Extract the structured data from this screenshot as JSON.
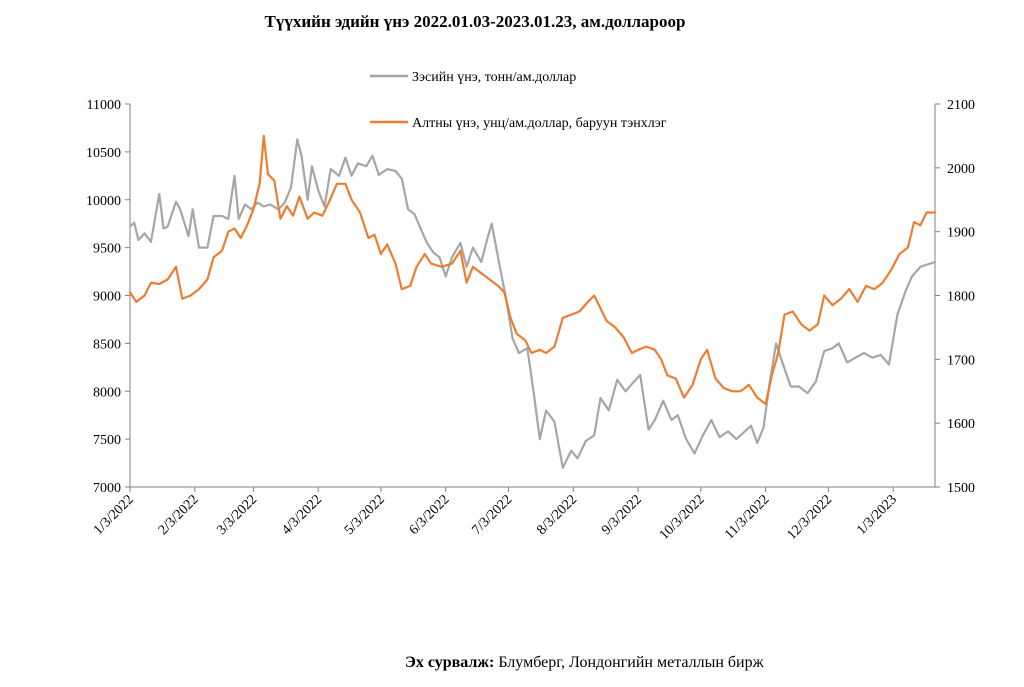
{
  "title": "Түүхийн эдийн үнэ 2022.01.03-2023.01.23, ам.доллароор",
  "source": {
    "label": "Эх сурвалж:",
    "text": " Блумберг, Лондонгийн металлын бирж"
  },
  "colors": {
    "copper": "#a6a6a6",
    "gold": "#ed7d31",
    "axis": "#808080"
  },
  "chart_data": {
    "type": "line",
    "title": "Түүхийн эдийн үнэ 2022.01.03-2023.01.23, ам.доллароор",
    "x_axis": {
      "type": "date",
      "range": [
        "2022-01-03",
        "2023-01-23"
      ],
      "tick_labels": [
        "1/3/2022",
        "2/3/2022",
        "3/3/2022",
        "4/3/2022",
        "5/3/2022",
        "6/3/2022",
        "7/3/2022",
        "8/3/2022",
        "9/3/2022",
        "10/3/2022",
        "11/3/2022",
        "12/3/2022",
        "1/3/2023"
      ],
      "tick_dates": [
        "2022-01-03",
        "2022-02-03",
        "2022-03-03",
        "2022-04-03",
        "2022-05-03",
        "2022-06-03",
        "2022-07-03",
        "2022-08-03",
        "2022-09-03",
        "2022-10-03",
        "2022-11-03",
        "2022-12-03",
        "2023-01-03"
      ]
    },
    "y_left": {
      "range": [
        7000,
        11000
      ],
      "tick_labels": [
        "7000",
        "7500",
        "8000",
        "8500",
        "9000",
        "9500",
        "10000",
        "10500",
        "11000"
      ]
    },
    "y_right": {
      "range": [
        1500,
        2100
      ],
      "tick_labels": [
        "1500",
        "1600",
        "1700",
        "1800",
        "1900",
        "2000",
        "2100"
      ]
    },
    "legend_position": "top-center",
    "series": [
      {
        "name": "Зэсийн үнэ, тонн/ам.доллар",
        "axis": "left",
        "color": "#a6a6a6",
        "points": [
          [
            "2022-01-03",
            9720
          ],
          [
            "2022-01-05",
            9760
          ],
          [
            "2022-01-07",
            9580
          ],
          [
            "2022-01-10",
            9650
          ],
          [
            "2022-01-13",
            9560
          ],
          [
            "2022-01-17",
            10060
          ],
          [
            "2022-01-19",
            9700
          ],
          [
            "2022-01-21",
            9720
          ],
          [
            "2022-01-25",
            9980
          ],
          [
            "2022-01-27",
            9900
          ],
          [
            "2022-01-31",
            9620
          ],
          [
            "2022-02-02",
            9900
          ],
          [
            "2022-02-05",
            9500
          ],
          [
            "2022-02-09",
            9500
          ],
          [
            "2022-02-12",
            9830
          ],
          [
            "2022-02-16",
            9830
          ],
          [
            "2022-02-19",
            9800
          ],
          [
            "2022-02-22",
            10250
          ],
          [
            "2022-02-24",
            9800
          ],
          [
            "2022-02-27",
            9950
          ],
          [
            "2022-03-02",
            9900
          ],
          [
            "2022-03-05",
            9970
          ],
          [
            "2022-03-08",
            9930
          ],
          [
            "2022-03-11",
            9950
          ],
          [
            "2022-03-15",
            9900
          ],
          [
            "2022-03-18",
            9970
          ],
          [
            "2022-03-21",
            10130
          ],
          [
            "2022-03-24",
            10630
          ],
          [
            "2022-03-26",
            10460
          ],
          [
            "2022-03-29",
            10000
          ],
          [
            "2022-03-31",
            10350
          ],
          [
            "2022-04-03",
            10100
          ],
          [
            "2022-04-06",
            9930
          ],
          [
            "2022-04-09",
            10320
          ],
          [
            "2022-04-13",
            10250
          ],
          [
            "2022-04-16",
            10440
          ],
          [
            "2022-04-19",
            10250
          ],
          [
            "2022-04-22",
            10380
          ],
          [
            "2022-04-26",
            10350
          ],
          [
            "2022-04-29",
            10460
          ],
          [
            "2022-05-02",
            10260
          ],
          [
            "2022-05-06",
            10320
          ],
          [
            "2022-05-10",
            10300
          ],
          [
            "2022-05-13",
            10220
          ],
          [
            "2022-05-16",
            9900
          ],
          [
            "2022-05-19",
            9850
          ],
          [
            "2022-05-22",
            9700
          ],
          [
            "2022-05-25",
            9550
          ],
          [
            "2022-05-28",
            9450
          ],
          [
            "2022-05-31",
            9400
          ],
          [
            "2022-06-03",
            9200
          ],
          [
            "2022-06-06",
            9400
          ],
          [
            "2022-06-10",
            9550
          ],
          [
            "2022-06-13",
            9300
          ],
          [
            "2022-06-16",
            9500
          ],
          [
            "2022-06-20",
            9350
          ],
          [
            "2022-06-23",
            9600
          ],
          [
            "2022-06-25",
            9750
          ],
          [
            "2022-06-28",
            9400
          ],
          [
            "2022-07-02",
            8950
          ],
          [
            "2022-07-05",
            8550
          ],
          [
            "2022-07-08",
            8400
          ],
          [
            "2022-07-12",
            8450
          ],
          [
            "2022-07-15",
            8000
          ],
          [
            "2022-07-18",
            7500
          ],
          [
            "2022-07-21",
            7800
          ],
          [
            "2022-07-25",
            7680
          ],
          [
            "2022-07-29",
            7200
          ],
          [
            "2022-08-02",
            7380
          ],
          [
            "2022-08-05",
            7300
          ],
          [
            "2022-08-09",
            7480
          ],
          [
            "2022-08-13",
            7540
          ],
          [
            "2022-08-16",
            7930
          ],
          [
            "2022-08-20",
            7800
          ],
          [
            "2022-08-24",
            8120
          ],
          [
            "2022-08-28",
            8000
          ],
          [
            "2022-09-01",
            8100
          ],
          [
            "2022-09-04",
            8170
          ],
          [
            "2022-09-08",
            7600
          ],
          [
            "2022-09-11",
            7700
          ],
          [
            "2022-09-15",
            7900
          ],
          [
            "2022-09-19",
            7700
          ],
          [
            "2022-09-22",
            7750
          ],
          [
            "2022-09-26",
            7500
          ],
          [
            "2022-09-30",
            7350
          ],
          [
            "2022-10-04",
            7540
          ],
          [
            "2022-10-08",
            7700
          ],
          [
            "2022-10-12",
            7520
          ],
          [
            "2022-10-16",
            7580
          ],
          [
            "2022-10-20",
            7500
          ],
          [
            "2022-10-24",
            7580
          ],
          [
            "2022-10-27",
            7640
          ],
          [
            "2022-10-30",
            7460
          ],
          [
            "2022-11-02",
            7620
          ],
          [
            "2022-11-05",
            8100
          ],
          [
            "2022-11-08",
            8500
          ],
          [
            "2022-11-11",
            8300
          ],
          [
            "2022-11-15",
            8050
          ],
          [
            "2022-11-19",
            8050
          ],
          [
            "2022-11-23",
            7980
          ],
          [
            "2022-11-27",
            8100
          ],
          [
            "2022-12-01",
            8420
          ],
          [
            "2022-12-05",
            8450
          ],
          [
            "2022-12-08",
            8500
          ],
          [
            "2022-12-12",
            8300
          ],
          [
            "2022-12-16",
            8350
          ],
          [
            "2022-12-20",
            8400
          ],
          [
            "2022-12-24",
            8350
          ],
          [
            "2022-12-28",
            8380
          ],
          [
            "2023-01-01",
            8280
          ],
          [
            "2023-01-05",
            8800
          ],
          [
            "2023-01-09",
            9050
          ],
          [
            "2023-01-12",
            9200
          ],
          [
            "2023-01-16",
            9300
          ],
          [
            "2023-01-23",
            9350
          ]
        ]
      },
      {
        "name": "Алтны үнэ, унц/ам.доллар, баруун тэнхлэг",
        "axis": "right",
        "color": "#ed7d31",
        "points": [
          [
            "2022-01-03",
            1805
          ],
          [
            "2022-01-06",
            1790
          ],
          [
            "2022-01-10",
            1800
          ],
          [
            "2022-01-13",
            1820
          ],
          [
            "2022-01-17",
            1818
          ],
          [
            "2022-01-21",
            1825
          ],
          [
            "2022-01-25",
            1845
          ],
          [
            "2022-01-28",
            1795
          ],
          [
            "2022-02-01",
            1800
          ],
          [
            "2022-02-05",
            1810
          ],
          [
            "2022-02-09",
            1825
          ],
          [
            "2022-02-12",
            1860
          ],
          [
            "2022-02-16",
            1870
          ],
          [
            "2022-02-19",
            1900
          ],
          [
            "2022-02-22",
            1905
          ],
          [
            "2022-02-25",
            1890
          ],
          [
            "2022-02-28",
            1910
          ],
          [
            "2022-03-03",
            1935
          ],
          [
            "2022-03-06",
            1975
          ],
          [
            "2022-03-08",
            2050
          ],
          [
            "2022-03-10",
            1990
          ],
          [
            "2022-03-13",
            1980
          ],
          [
            "2022-03-16",
            1920
          ],
          [
            "2022-03-19",
            1940
          ],
          [
            "2022-03-22",
            1925
          ],
          [
            "2022-03-25",
            1955
          ],
          [
            "2022-03-29",
            1920
          ],
          [
            "2022-04-01",
            1930
          ],
          [
            "2022-04-05",
            1925
          ],
          [
            "2022-04-08",
            1945
          ],
          [
            "2022-04-12",
            1975
          ],
          [
            "2022-04-16",
            1975
          ],
          [
            "2022-04-19",
            1950
          ],
          [
            "2022-04-23",
            1930
          ],
          [
            "2022-04-27",
            1890
          ],
          [
            "2022-04-30",
            1895
          ],
          [
            "2022-05-03",
            1865
          ],
          [
            "2022-05-06",
            1880
          ],
          [
            "2022-05-10",
            1850
          ],
          [
            "2022-05-13",
            1810
          ],
          [
            "2022-05-17",
            1815
          ],
          [
            "2022-05-20",
            1845
          ],
          [
            "2022-05-24",
            1865
          ],
          [
            "2022-05-27",
            1850
          ],
          [
            "2022-06-01",
            1845
          ],
          [
            "2022-06-06",
            1850
          ],
          [
            "2022-06-10",
            1870
          ],
          [
            "2022-06-13",
            1820
          ],
          [
            "2022-06-16",
            1845
          ],
          [
            "2022-06-20",
            1835
          ],
          [
            "2022-06-24",
            1825
          ],
          [
            "2022-06-28",
            1815
          ],
          [
            "2022-07-01",
            1805
          ],
          [
            "2022-07-04",
            1765
          ],
          [
            "2022-07-07",
            1740
          ],
          [
            "2022-07-11",
            1730
          ],
          [
            "2022-07-14",
            1710
          ],
          [
            "2022-07-18",
            1715
          ],
          [
            "2022-07-21",
            1710
          ],
          [
            "2022-07-25",
            1720
          ],
          [
            "2022-07-29",
            1765
          ],
          [
            "2022-08-02",
            1770
          ],
          [
            "2022-08-06",
            1775
          ],
          [
            "2022-08-10",
            1790
          ],
          [
            "2022-08-13",
            1800
          ],
          [
            "2022-08-16",
            1780
          ],
          [
            "2022-08-19",
            1760
          ],
          [
            "2022-08-23",
            1750
          ],
          [
            "2022-08-27",
            1735
          ],
          [
            "2022-08-31",
            1710
          ],
          [
            "2022-09-03",
            1715
          ],
          [
            "2022-09-07",
            1720
          ],
          [
            "2022-09-11",
            1715
          ],
          [
            "2022-09-14",
            1700
          ],
          [
            "2022-09-17",
            1675
          ],
          [
            "2022-09-21",
            1670
          ],
          [
            "2022-09-25",
            1640
          ],
          [
            "2022-09-29",
            1660
          ],
          [
            "2022-10-03",
            1700
          ],
          [
            "2022-10-06",
            1715
          ],
          [
            "2022-10-10",
            1670
          ],
          [
            "2022-10-14",
            1655
          ],
          [
            "2022-10-18",
            1650
          ],
          [
            "2022-10-22",
            1650
          ],
          [
            "2022-10-26",
            1660
          ],
          [
            "2022-10-30",
            1640
          ],
          [
            "2022-11-03",
            1630
          ],
          [
            "2022-11-06",
            1675
          ],
          [
            "2022-11-09",
            1710
          ],
          [
            "2022-11-12",
            1770
          ],
          [
            "2022-11-16",
            1775
          ],
          [
            "2022-11-20",
            1755
          ],
          [
            "2022-11-24",
            1745
          ],
          [
            "2022-11-28",
            1755
          ],
          [
            "2022-12-01",
            1800
          ],
          [
            "2022-12-05",
            1785
          ],
          [
            "2022-12-09",
            1795
          ],
          [
            "2022-12-13",
            1810
          ],
          [
            "2022-12-17",
            1790
          ],
          [
            "2022-12-21",
            1815
          ],
          [
            "2022-12-25",
            1810
          ],
          [
            "2022-12-29",
            1820
          ],
          [
            "2023-01-02",
            1840
          ],
          [
            "2023-01-06",
            1865
          ],
          [
            "2023-01-10",
            1875
          ],
          [
            "2023-01-13",
            1915
          ],
          [
            "2023-01-16",
            1910
          ],
          [
            "2023-01-19",
            1930
          ],
          [
            "2023-01-23",
            1930
          ]
        ]
      }
    ]
  }
}
